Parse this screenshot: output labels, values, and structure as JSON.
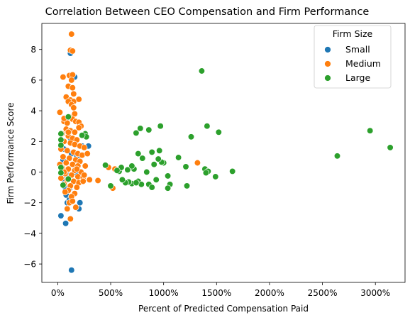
{
  "chart_data": {
    "type": "scatter",
    "title": "Correlation Between CEO Compensation and Firm Performance",
    "xlabel": "Percent of Predicted Compensation Paid",
    "ylabel": "Firm Performance Score",
    "xlim": [
      -150,
      3280
    ],
    "ylim": [
      -7.2,
      9.7
    ],
    "xticks": [
      0,
      500,
      1000,
      1500,
      2000,
      2500,
      3000
    ],
    "xtick_labels": [
      "0%",
      "500%",
      "1000%",
      "1500%",
      "2000%",
      "2500%",
      "3000%"
    ],
    "yticks": [
      -6,
      -4,
      -2,
      0,
      2,
      4,
      6,
      8
    ],
    "ytick_labels": [
      "−6",
      "−4",
      "−2",
      "0",
      "2",
      "4",
      "6",
      "8"
    ],
    "grid": false,
    "legend": {
      "title": "Firm Size",
      "placement": "top-right"
    },
    "series": [
      {
        "name": "Small",
        "color": "#1f77b4",
        "points": [
          [
            30,
            -2.85
          ],
          [
            75,
            -3.35
          ],
          [
            130,
            -6.4
          ],
          [
            120,
            7.75
          ],
          [
            160,
            6.2
          ],
          [
            80,
            -1.5
          ],
          [
            90,
            -2.0
          ],
          [
            110,
            -1.8
          ],
          [
            210,
            -2.0
          ],
          [
            200,
            -2.4
          ],
          [
            70,
            -1.0
          ],
          [
            60,
            -0.5
          ],
          [
            100,
            0.2
          ],
          [
            140,
            0.5
          ],
          [
            180,
            1.0
          ],
          [
            230,
            1.7
          ],
          [
            290,
            1.7
          ],
          [
            50,
            0.8
          ],
          [
            150,
            -0.6
          ],
          [
            120,
            2.2
          ],
          [
            90,
            -0.2
          ],
          [
            170,
            0.0
          ],
          [
            60,
            1.5
          ],
          [
            110,
            -1.1
          ],
          [
            130,
            1.2
          ]
        ]
      },
      {
        "name": "Medium",
        "color": "#ff7f0e",
        "points": [
          [
            130,
            9.0
          ],
          [
            120,
            7.95
          ],
          [
            140,
            7.9
          ],
          [
            110,
            6.3
          ],
          [
            50,
            6.2
          ],
          [
            140,
            6.35
          ],
          [
            130,
            6.0
          ],
          [
            100,
            5.6
          ],
          [
            140,
            5.5
          ],
          [
            150,
            5.1
          ],
          [
            80,
            4.9
          ],
          [
            120,
            4.7
          ],
          [
            150,
            4.6
          ],
          [
            200,
            4.75
          ],
          [
            100,
            4.6
          ],
          [
            130,
            4.4
          ],
          [
            150,
            4.2
          ],
          [
            160,
            3.8
          ],
          [
            110,
            3.6
          ],
          [
            140,
            3.45
          ],
          [
            20,
            3.9
          ],
          [
            60,
            3.3
          ],
          [
            90,
            3.2
          ],
          [
            170,
            3.3
          ],
          [
            200,
            3.25
          ],
          [
            220,
            3.0
          ],
          [
            80,
            2.8
          ],
          [
            120,
            2.7
          ],
          [
            160,
            2.6
          ],
          [
            40,
            2.5
          ],
          [
            100,
            2.35
          ],
          [
            140,
            2.2
          ],
          [
            180,
            2.1
          ],
          [
            60,
            2.0
          ],
          [
            120,
            1.9
          ],
          [
            160,
            1.8
          ],
          [
            210,
            1.7
          ],
          [
            250,
            1.6
          ],
          [
            30,
            1.5
          ],
          [
            90,
            1.4
          ],
          [
            150,
            1.3
          ],
          [
            190,
            1.2
          ],
          [
            230,
            1.1
          ],
          [
            50,
            1.0
          ],
          [
            110,
            0.9
          ],
          [
            170,
            0.8
          ],
          [
            210,
            0.7
          ],
          [
            80,
            0.6
          ],
          [
            140,
            0.5
          ],
          [
            190,
            0.4
          ],
          [
            40,
            0.3
          ],
          [
            100,
            0.2
          ],
          [
            160,
            0.1
          ],
          [
            220,
            0.0
          ],
          [
            70,
            -0.1
          ],
          [
            130,
            -0.2
          ],
          [
            190,
            -0.3
          ],
          [
            240,
            -0.35
          ],
          [
            30,
            -0.4
          ],
          [
            90,
            -0.5
          ],
          [
            150,
            -0.6
          ],
          [
            200,
            -0.7
          ],
          [
            60,
            -0.8
          ],
          [
            120,
            -0.9
          ],
          [
            180,
            -1.0
          ],
          [
            100,
            -1.2
          ],
          [
            160,
            -1.4
          ],
          [
            130,
            -1.6
          ],
          [
            110,
            -2.0
          ],
          [
            90,
            -2.4
          ],
          [
            120,
            -3.05
          ],
          [
            240,
            -0.6
          ],
          [
            300,
            -0.5
          ],
          [
            380,
            -0.55
          ],
          [
            480,
            0.3
          ],
          [
            540,
            0.2
          ],
          [
            520,
            -1.05
          ],
          [
            1320,
            0.6
          ],
          [
            260,
            0.4
          ],
          [
            280,
            1.2
          ],
          [
            60,
            0.0
          ],
          [
            200,
            2.9
          ],
          [
            250,
            -0.2
          ],
          [
            20,
            0.5
          ],
          [
            70,
            -1.3
          ],
          [
            170,
            -2.3
          ],
          [
            140,
            -1.9
          ],
          [
            100,
            2.6
          ],
          [
            180,
            0.2
          ],
          [
            60,
            3.5
          ]
        ]
      },
      {
        "name": "Large",
        "color": "#2ca02c",
        "points": [
          [
            1360,
            6.6
          ],
          [
            2950,
            2.7
          ],
          [
            3140,
            1.6
          ],
          [
            2640,
            1.05
          ],
          [
            1650,
            0.05
          ],
          [
            1520,
            2.6
          ],
          [
            1410,
            3.0
          ],
          [
            1260,
            2.3
          ],
          [
            970,
            3.0
          ],
          [
            860,
            2.75
          ],
          [
            780,
            2.85
          ],
          [
            740,
            2.55
          ],
          [
            960,
            1.4
          ],
          [
            890,
            1.3
          ],
          [
            1140,
            0.95
          ],
          [
            1000,
            0.6
          ],
          [
            980,
            0.65
          ],
          [
            910,
            0.5
          ],
          [
            950,
            0.85
          ],
          [
            800,
            0.9
          ],
          [
            760,
            1.2
          ],
          [
            1210,
            0.35
          ],
          [
            1390,
            0.2
          ],
          [
            1420,
            0.05
          ],
          [
            1490,
            -0.3
          ],
          [
            1400,
            -0.05
          ],
          [
            1040,
            -0.25
          ],
          [
            930,
            -0.5
          ],
          [
            860,
            -0.8
          ],
          [
            1060,
            -0.8
          ],
          [
            1040,
            -1.05
          ],
          [
            890,
            -1.0
          ],
          [
            760,
            -0.6
          ],
          [
            790,
            -0.8
          ],
          [
            700,
            -0.75
          ],
          [
            670,
            -0.65
          ],
          [
            640,
            -0.7
          ],
          [
            610,
            -0.5
          ],
          [
            720,
            0.2
          ],
          [
            660,
            0.15
          ],
          [
            700,
            0.4
          ],
          [
            580,
            0.05
          ],
          [
            600,
            0.3
          ],
          [
            560,
            0.1
          ],
          [
            450,
            0.45
          ],
          [
            500,
            -0.9
          ],
          [
            840,
            0.0
          ],
          [
            1220,
            -0.9
          ],
          [
            30,
            2.5
          ],
          [
            30,
            2.1
          ],
          [
            30,
            1.75
          ],
          [
            30,
            0.3
          ],
          [
            30,
            -0.05
          ],
          [
            50,
            -0.85
          ],
          [
            100,
            -0.45
          ],
          [
            100,
            3.6
          ],
          [
            260,
            2.5
          ],
          [
            270,
            2.3
          ],
          [
            230,
            2.4
          ],
          [
            740,
            -0.7
          ]
        ]
      }
    ]
  }
}
